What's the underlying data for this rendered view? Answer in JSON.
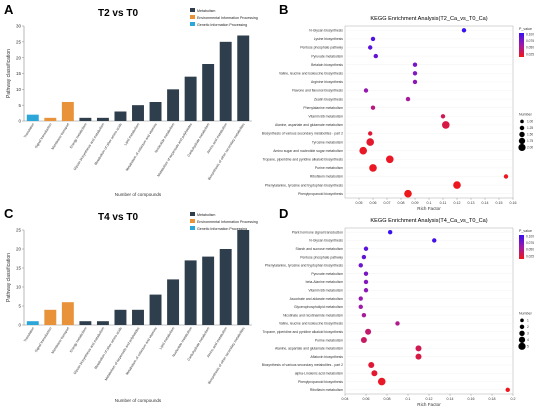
{
  "panels": {
    "A": "A",
    "B": "B",
    "C": "C",
    "D": "D"
  },
  "chart_data": [
    {
      "id": "A",
      "type": "bar",
      "title": "T2 vs T0",
      "xlabel": "Number of compounds",
      "ylabel": "Pathway classification",
      "ylim": [
        0,
        30
      ],
      "yticks": [
        0,
        5,
        10,
        15,
        20,
        25,
        30
      ],
      "legend": [
        {
          "name": "Metabolism",
          "color": "#2f3e4c"
        },
        {
          "name": "Environmental Information Processing",
          "color": "#e8923a"
        },
        {
          "name": "Genetic Information Processing",
          "color": "#2aa6d8"
        }
      ],
      "bars": [
        {
          "label": "Translation",
          "value": 2,
          "group": "Genetic Information Processing"
        },
        {
          "label": "Signal transduction",
          "value": 1,
          "group": "Environmental Information Processing"
        },
        {
          "label": "Membrane transport",
          "value": 6,
          "group": "Environmental Information Processing"
        },
        {
          "label": "Energy metabolism",
          "value": 1,
          "group": "Metabolism"
        },
        {
          "label": "Glycan biosynthesis and metabolism",
          "value": 1,
          "group": "Metabolism"
        },
        {
          "label": "Metabolism of other amino acids",
          "value": 3,
          "group": "Metabolism"
        },
        {
          "label": "Lipid metabolism",
          "value": 5,
          "group": "Metabolism"
        },
        {
          "label": "Metabolism of cofactors and vitamins",
          "value": 6,
          "group": "Metabolism"
        },
        {
          "label": "Nucleotide metabolism",
          "value": 10,
          "group": "Metabolism"
        },
        {
          "label": "Metabolism of terpenoids and polyketides",
          "value": 14,
          "group": "Metabolism"
        },
        {
          "label": "Carbohydrate metabolism",
          "value": 18,
          "group": "Metabolism"
        },
        {
          "label": "Amino acid metabolism",
          "value": 25,
          "group": "Metabolism"
        },
        {
          "label": "Biosynthesis of other secondary metabolites",
          "value": 27,
          "group": "Metabolism"
        }
      ]
    },
    {
      "id": "B",
      "type": "scatter",
      "title": "KEGG Enrichment Analysis(T2_Ca_vs_T0_Ca)",
      "xlabel": "Rich Factor",
      "xlim": [
        0.04,
        0.16
      ],
      "xticks": [
        0.05,
        0.06,
        0.07,
        0.08,
        0.09,
        0.1,
        0.11,
        0.12,
        0.13,
        0.14,
        0.15,
        0.16
      ],
      "legend_color_title": "P_value",
      "color_ticks": [
        "0.100",
        "0.075",
        "0.050",
        "0.025"
      ],
      "legend_size_title": "Number",
      "size_ticks": [
        "1.00",
        "1.25",
        "1.50",
        "1.75",
        "2.00"
      ],
      "points": [
        {
          "label": "N-Glycan biosynthesis",
          "x": 0.125,
          "n": 1,
          "p": 0.1
        },
        {
          "label": "Lysine biosynthesis",
          "x": 0.06,
          "n": 1,
          "p": 0.09
        },
        {
          "label": "Pentose phosphate pathway",
          "x": 0.058,
          "n": 1,
          "p": 0.085
        },
        {
          "label": "Pyruvate metabolism",
          "x": 0.062,
          "n": 1,
          "p": 0.08
        },
        {
          "label": "Betalain biosynthesis",
          "x": 0.09,
          "n": 1,
          "p": 0.07
        },
        {
          "label": "Valine, leucine and isoleucine biosynthesis",
          "x": 0.09,
          "n": 1,
          "p": 0.065
        },
        {
          "label": "Arginine biosynthesis",
          "x": 0.09,
          "n": 1,
          "p": 0.06
        },
        {
          "label": "Flavone and flavonol biosynthesis",
          "x": 0.055,
          "n": 1,
          "p": 0.055
        },
        {
          "label": "Zeatin biosynthesis",
          "x": 0.085,
          "n": 1,
          "p": 0.045
        },
        {
          "label": "Phenylalanine metabolism",
          "x": 0.06,
          "n": 1,
          "p": 0.035
        },
        {
          "label": "Vitamin B6 metabolism",
          "x": 0.11,
          "n": 1,
          "p": 0.02
        },
        {
          "label": "Alanine, aspartate and glutamate metabolism",
          "x": 0.112,
          "n": 2,
          "p": 0.015
        },
        {
          "label": "Biosynthesis of various secondary metabolites - part 2",
          "x": 0.058,
          "n": 1,
          "p": 0.01
        },
        {
          "label": "Tyrosine metabolism",
          "x": 0.058,
          "n": 2,
          "p": 0.008
        },
        {
          "label": "Amino sugar and nucleotide sugar metabolism",
          "x": 0.053,
          "n": 2,
          "p": 0.005
        },
        {
          "label": "Tropane, piperidine and pyridine alkaloid biosynthesis",
          "x": 0.072,
          "n": 2,
          "p": 0.004
        },
        {
          "label": "Purine metabolism",
          "x": 0.06,
          "n": 2,
          "p": 0.003
        },
        {
          "label": "Riboflavin metabolism",
          "x": 0.155,
          "n": 1,
          "p": 0.002
        },
        {
          "label": "Phenylalanine, tyrosine and tryptophan biosynthesis",
          "x": 0.12,
          "n": 2,
          "p": 0.002
        },
        {
          "label": "Phenylpropanoid biosynthesis",
          "x": 0.085,
          "n": 2,
          "p": 0.001
        }
      ]
    },
    {
      "id": "C",
      "type": "bar",
      "title": "T4 vs T0",
      "xlabel": "Number of compounds",
      "ylabel": "Pathway classification",
      "ylim": [
        0,
        25
      ],
      "yticks": [
        0,
        5,
        10,
        15,
        20,
        25
      ],
      "legend": [
        {
          "name": "Metabolism",
          "color": "#2f3e4c"
        },
        {
          "name": "Environmental Information Processing",
          "color": "#e8923a"
        },
        {
          "name": "Genetic Information Processing",
          "color": "#2aa6d8"
        }
      ],
      "bars": [
        {
          "label": "Translation",
          "value": 1,
          "group": "Genetic Information Processing"
        },
        {
          "label": "Signal transduction",
          "value": 4,
          "group": "Environmental Information Processing"
        },
        {
          "label": "Membrane transport",
          "value": 6,
          "group": "Environmental Information Processing"
        },
        {
          "label": "Energy metabolism",
          "value": 1,
          "group": "Metabolism"
        },
        {
          "label": "Glycan biosynthesis and metabolism",
          "value": 1,
          "group": "Metabolism"
        },
        {
          "label": "Metabolism of other amino acids",
          "value": 4,
          "group": "Metabolism"
        },
        {
          "label": "Metabolism of terpenoids and polyketides",
          "value": 4,
          "group": "Metabolism"
        },
        {
          "label": "Metabolism of cofactors and vitamins",
          "value": 8,
          "group": "Metabolism"
        },
        {
          "label": "Lipid metabolism",
          "value": 12,
          "group": "Metabolism"
        },
        {
          "label": "Nucleotide metabolism",
          "value": 17,
          "group": "Metabolism"
        },
        {
          "label": "Carbohydrate metabolism",
          "value": 18,
          "group": "Metabolism"
        },
        {
          "label": "Amino acid metabolism",
          "value": 20,
          "group": "Metabolism"
        },
        {
          "label": "Biosynthesis of other secondary metabolites",
          "value": 25,
          "group": "Metabolism"
        }
      ]
    },
    {
      "id": "D",
      "type": "scatter",
      "title": "KEGG Enrichment Analysis(T4_Ca_vs_T0_Ca)",
      "xlabel": "Rich Factor",
      "xlim": [
        0.04,
        0.2
      ],
      "xticks": [
        0.04,
        0.06,
        0.08,
        0.1,
        0.12,
        0.14,
        0.16,
        0.18,
        0.2
      ],
      "legend_color_title": "P_value",
      "color_ticks": [
        "0.100",
        "0.075",
        "0.050",
        "0.025"
      ],
      "legend_size_title": "Number",
      "size_ticks": [
        "1",
        "2",
        "3",
        "4",
        "5"
      ],
      "points": [
        {
          "label": "Plant hormone signal transduction",
          "x": 0.083,
          "n": 1,
          "p": 0.1
        },
        {
          "label": "N-Glycan biosynthesis",
          "x": 0.125,
          "n": 1,
          "p": 0.095
        },
        {
          "label": "Starch and sucrose metabolism",
          "x": 0.06,
          "n": 1,
          "p": 0.085
        },
        {
          "label": "Pentose phosphate pathway",
          "x": 0.058,
          "n": 1,
          "p": 0.08
        },
        {
          "label": "Phenylalanine, tyrosine and tryptophan biosynthesis",
          "x": 0.055,
          "n": 1,
          "p": 0.075
        },
        {
          "label": "Pyruvate metabolism",
          "x": 0.06,
          "n": 1,
          "p": 0.07
        },
        {
          "label": "beta-Alanine metabolism",
          "x": 0.06,
          "n": 1,
          "p": 0.065
        },
        {
          "label": "Vitamin B6 metabolism",
          "x": 0.06,
          "n": 1,
          "p": 0.06
        },
        {
          "label": "Ascorbate and aldarate metabolism",
          "x": 0.055,
          "n": 1,
          "p": 0.055
        },
        {
          "label": "Glycerophospholipid metabolism",
          "x": 0.055,
          "n": 1,
          "p": 0.05
        },
        {
          "label": "Nicotinate and nicotinamide metabolism",
          "x": 0.058,
          "n": 1,
          "p": 0.045
        },
        {
          "label": "Valine, leucine and isoleucine biosynthesis",
          "x": 0.09,
          "n": 1,
          "p": 0.04
        },
        {
          "label": "Tropane, piperidine and pyridine alkaloid biosynthesis",
          "x": 0.062,
          "n": 2,
          "p": 0.03
        },
        {
          "label": "Purine metabolism",
          "x": 0.058,
          "n": 2,
          "p": 0.025
        },
        {
          "label": "Alanine, aspartate and glutamate metabolism",
          "x": 0.11,
          "n": 2,
          "p": 0.02
        },
        {
          "label": "Aflatoxin biosynthesis",
          "x": 0.11,
          "n": 2,
          "p": 0.015
        },
        {
          "label": "Biosynthesis of various secondary metabolites - part 2",
          "x": 0.065,
          "n": 2,
          "p": 0.01
        },
        {
          "label": "alpha-Linolenic acid metabolism",
          "x": 0.068,
          "n": 2,
          "p": 0.008
        },
        {
          "label": "Phenylpropanoid biosynthesis",
          "x": 0.075,
          "n": 3,
          "p": 0.005
        },
        {
          "label": "Riboflavin metabolism",
          "x": 0.195,
          "n": 1,
          "p": 0.002
        }
      ]
    }
  ]
}
